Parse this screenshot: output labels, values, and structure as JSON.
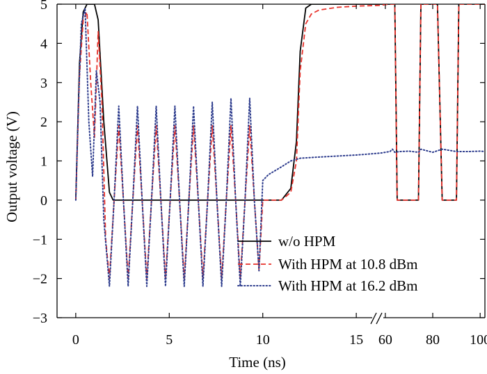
{
  "chart_data": {
    "type": "line",
    "title": "",
    "xlabel": "Time (ns)",
    "ylabel": "Output voltage (V)",
    "ylim": [
      -3,
      5
    ],
    "y_ticks": [
      -3,
      -2,
      -1,
      0,
      1,
      2,
      3,
      4,
      5
    ],
    "grid": false,
    "legend_position": "lower-right",
    "x_axis": {
      "broken": true,
      "segments": [
        {
          "range": [
            -1,
            16
          ],
          "ticks": [
            0,
            5,
            10,
            15
          ]
        },
        {
          "range": [
            58,
            102
          ],
          "ticks": [
            60,
            80,
            100
          ]
        }
      ],
      "tick_labels": [
        "0",
        "5",
        "10",
        "15",
        "60",
        "80",
        "100"
      ]
    },
    "series": [
      {
        "name": "w/o HPM",
        "color": "#000000",
        "style": "solid",
        "x": [
          0,
          0.2,
          0.4,
          0.6,
          1.0,
          1.2,
          1.5,
          1.8,
          2.0,
          4,
          6,
          8,
          10,
          11,
          11.5,
          11.8,
          12.0,
          12.3,
          12.6,
          13,
          15,
          58,
          60,
          62,
          64,
          65,
          70,
          74,
          75,
          80,
          82,
          84,
          90,
          91,
          96,
          100,
          102
        ],
        "y": [
          0,
          3.5,
          4.8,
          5,
          5,
          4.6,
          2.0,
          0.2,
          0,
          0,
          0,
          0,
          0,
          0,
          0.3,
          1.5,
          3.8,
          4.9,
          5,
          5,
          5,
          5,
          5,
          5,
          5,
          0,
          0,
          0,
          5,
          5,
          5,
          0,
          0,
          5,
          5,
          5,
          5
        ]
      },
      {
        "name": "With HPM at 10.8 dBm",
        "color": "#e8312a",
        "style": "dashed",
        "x": [
          0,
          0.2,
          0.4,
          0.6,
          0.8,
          1.0,
          1.2,
          1.4,
          1.6,
          1.8,
          2.05,
          2.3,
          2.55,
          2.8,
          3.05,
          3.3,
          3.55,
          3.8,
          4.05,
          4.3,
          4.55,
          4.8,
          5.05,
          5.3,
          5.55,
          5.8,
          6.05,
          6.3,
          6.55,
          6.8,
          7.05,
          7.3,
          7.55,
          7.8,
          8.05,
          8.3,
          8.55,
          8.8,
          9.05,
          9.3,
          9.55,
          9.8,
          10.0,
          10.3,
          11,
          11.5,
          11.8,
          12.0,
          12.3,
          12.6,
          13,
          14,
          15,
          58,
          60,
          62,
          64,
          65,
          70,
          74,
          75,
          80,
          82,
          84,
          90,
          91,
          96,
          100,
          102
        ],
        "y": [
          0,
          3.2,
          4.6,
          4.8,
          3.0,
          1.6,
          4.3,
          2.5,
          -1.0,
          -2.0,
          0,
          1.9,
          0,
          -2.0,
          0,
          1.9,
          0,
          -2.0,
          0,
          1.9,
          0,
          -2.0,
          0,
          1.9,
          0,
          -2.0,
          0,
          1.9,
          0,
          -2.0,
          0,
          1.9,
          0,
          -2.0,
          0,
          1.9,
          0,
          -2.0,
          0,
          1.9,
          0,
          -1.8,
          0,
          0,
          0,
          0.2,
          1.0,
          3.3,
          4.5,
          4.75,
          4.85,
          4.92,
          4.95,
          4.97,
          4.99,
          5,
          5,
          0,
          0,
          0,
          5,
          5,
          5,
          0,
          0,
          5,
          5,
          5,
          5
        ]
      },
      {
        "name": "With HPM at 16.2 dBm",
        "color": "#2b3a8c",
        "style": "dotted",
        "x": [
          0,
          0.15,
          0.3,
          0.5,
          0.7,
          0.9,
          1.1,
          1.3,
          1.5,
          1.8,
          2.05,
          2.3,
          2.55,
          2.8,
          3.05,
          3.3,
          3.55,
          3.8,
          4.05,
          4.3,
          4.55,
          4.8,
          5.05,
          5.3,
          5.55,
          5.8,
          6.05,
          6.3,
          6.55,
          6.8,
          7.05,
          7.3,
          7.55,
          7.8,
          8.05,
          8.3,
          8.55,
          8.8,
          9.05,
          9.3,
          9.55,
          9.8,
          10.0,
          10.3,
          11,
          11.5,
          12,
          13,
          15,
          58,
          60,
          62,
          63,
          64,
          66,
          70,
          74,
          75,
          80,
          84,
          90,
          95,
          100,
          102
        ],
        "y": [
          0,
          2.5,
          4.5,
          4.9,
          2.0,
          0.6,
          3.3,
          2.5,
          -0.5,
          -2.2,
          0,
          2.4,
          0,
          -2.2,
          0,
          2.4,
          0,
          -2.2,
          0,
          2.4,
          0,
          -2.2,
          0,
          2.4,
          0,
          -2.2,
          0,
          2.4,
          0,
          -2.2,
          0,
          2.5,
          0,
          -2.2,
          0,
          2.6,
          0,
          -2.2,
          0,
          2.6,
          0,
          -1.8,
          0.5,
          0.65,
          0.85,
          1.0,
          1.07,
          1.1,
          1.15,
          1.2,
          1.22,
          1.24,
          1.3,
          1.22,
          1.24,
          1.25,
          1.22,
          1.3,
          1.22,
          1.3,
          1.24,
          1.24,
          1.25,
          1.24
        ]
      }
    ]
  }
}
